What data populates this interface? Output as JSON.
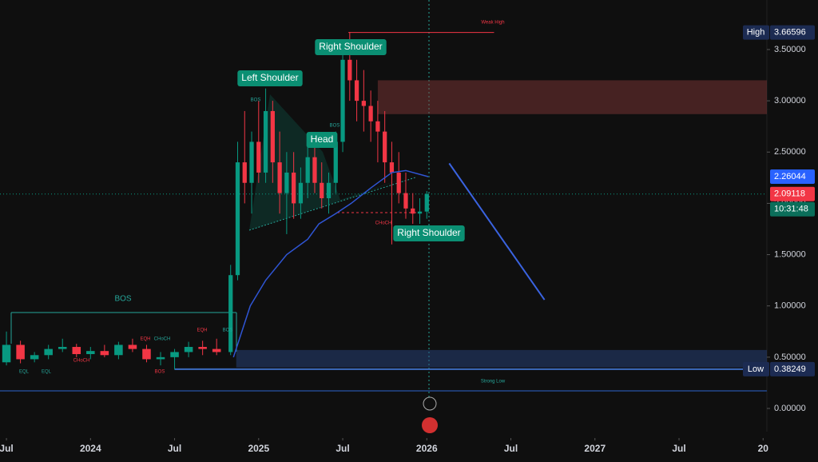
{
  "chart_data": {
    "type": "candlestick",
    "x": [
      0,
      1,
      2,
      3,
      4,
      5,
      6,
      7,
      8,
      9,
      10,
      11,
      12,
      13,
      14,
      15,
      16,
      16.5,
      17,
      17.5,
      18,
      18.5,
      19,
      19.5,
      20,
      20.5,
      21,
      21.5,
      22,
      22.5,
      23,
      23.5,
      24,
      24.5,
      25,
      25.5,
      26,
      26.5,
      27,
      27.5,
      28,
      28.5,
      29,
      29.5,
      30
    ],
    "open": [
      0.45,
      0.62,
      0.48,
      0.52,
      0.58,
      0.6,
      0.53,
      0.56,
      0.52,
      0.62,
      0.58,
      0.48,
      0.5,
      0.55,
      0.6,
      0.58,
      0.55,
      1.3,
      2.4,
      2.2,
      2.6,
      2.3,
      2.9,
      2.4,
      2.1,
      2.3,
      2.0,
      2.2,
      2.45,
      2.2,
      2.05,
      2.2,
      2.6,
      3.4,
      3.2,
      3.0,
      2.95,
      2.8,
      2.7,
      2.4,
      2.3,
      2.1,
      1.95,
      1.9,
      1.92
    ],
    "high": [
      0.75,
      0.66,
      0.55,
      0.62,
      0.68,
      0.63,
      0.6,
      0.62,
      0.65,
      0.68,
      0.62,
      0.55,
      0.58,
      0.65,
      0.66,
      0.68,
      1.4,
      2.6,
      2.9,
      2.7,
      3.0,
      3.12,
      3.0,
      2.7,
      2.5,
      2.5,
      2.35,
      2.55,
      2.55,
      2.4,
      2.3,
      2.7,
      3.6,
      3.67,
      3.4,
      3.3,
      3.1,
      3.0,
      2.9,
      2.6,
      2.5,
      2.3,
      2.1,
      2.05,
      2.12
    ],
    "low": [
      0.42,
      0.44,
      0.45,
      0.48,
      0.55,
      0.5,
      0.48,
      0.5,
      0.48,
      0.55,
      0.45,
      0.42,
      0.38,
      0.5,
      0.52,
      0.52,
      0.52,
      1.25,
      2.0,
      1.9,
      2.2,
      2.2,
      2.2,
      1.9,
      1.7,
      1.85,
      1.85,
      2.05,
      2.1,
      1.95,
      1.9,
      2.1,
      2.5,
      3.0,
      2.8,
      2.7,
      2.6,
      2.4,
      2.2,
      1.6,
      2.0,
      1.85,
      1.8,
      1.8,
      1.85
    ],
    "close": [
      0.62,
      0.48,
      0.52,
      0.58,
      0.6,
      0.53,
      0.56,
      0.52,
      0.62,
      0.58,
      0.48,
      0.5,
      0.55,
      0.6,
      0.58,
      0.55,
      1.3,
      2.4,
      2.2,
      2.6,
      2.3,
      2.9,
      2.4,
      2.1,
      2.3,
      2.0,
      2.2,
      2.45,
      2.2,
      2.05,
      2.2,
      2.6,
      3.4,
      3.2,
      3.0,
      2.95,
      2.8,
      2.7,
      2.4,
      2.3,
      2.1,
      1.95,
      1.9,
      1.92,
      2.09118
    ],
    "up_color": "#089981",
    "down_color": "#f23645",
    "moving_average": {
      "color": "#2f55d4",
      "x": [
        16.2,
        17.4,
        18.5,
        20,
        21.5,
        22.3,
        23.5,
        24.6,
        26,
        27.5,
        28.5,
        30.1
      ],
      "values": [
        0.5,
        1.0,
        1.25,
        1.5,
        1.65,
        1.8,
        1.9,
        2.0,
        2.15,
        2.3,
        2.32,
        2.26044
      ]
    },
    "projection": {
      "color": "#3a63e0",
      "x": [
        31.6,
        38.4
      ],
      "values": [
        2.39,
        1.06
      ]
    },
    "supply_zone": {
      "x": [
        26.5,
        54.27
      ],
      "values": [
        2.87,
        3.2
      ],
      "color": "#8a3a3a"
    },
    "demand_zone": {
      "x": [
        16.4,
        54.27
      ],
      "values": [
        0.4,
        0.57
      ],
      "color": "#2a4a8a"
    },
    "weak_high": {
      "x": [
        24.4,
        34.8
      ],
      "value": 3.66596
    },
    "strong_low": {
      "x": [
        12,
        54.27
      ],
      "value": 0.38249
    },
    "xlim": [
      -0.46,
      54.27
    ],
    "ylim": [
      -0.226,
      3.983
    ],
    "xticks": [
      {
        "value": 0,
        "label": "Jul"
      },
      {
        "value": 6,
        "label": "2024"
      },
      {
        "value": 12,
        "label": "Jul"
      },
      {
        "value": 18,
        "label": "2025"
      },
      {
        "value": 24,
        "label": "Jul"
      },
      {
        "value": 30,
        "label": "2026"
      },
      {
        "value": 36,
        "label": "Jul"
      },
      {
        "value": 42,
        "label": "2027"
      },
      {
        "value": 48,
        "label": "Jul"
      },
      {
        "value": 54,
        "label": "20"
      }
    ],
    "yticks": [
      {
        "value": 0,
        "label": "0.00000"
      },
      {
        "value": 0.5,
        "label": "0.50000"
      },
      {
        "value": 1,
        "label": "1.00000"
      },
      {
        "value": 1.5,
        "label": "1.50000"
      },
      {
        "value": 2,
        "label": "2.00000"
      },
      {
        "value": 2.5,
        "label": "2.50000"
      },
      {
        "value": 3,
        "label": "3.00000"
      },
      {
        "value": 3.5,
        "label": "3.50000"
      }
    ],
    "price_labels": [
      {
        "label": "High",
        "value": 3.66596,
        "color": "#1c2b52"
      },
      {
        "value": 2.26044,
        "color": "#2962ff"
      },
      {
        "value": 2.09118,
        "color": "#f23645"
      },
      {
        "value": 0.38249,
        "label": "Low",
        "color": "#1c2b52"
      }
    ],
    "countdown": "10:31:48",
    "annotations": [
      "Left Shoulder",
      "Head",
      "Right Shoulder",
      "Right Shoulder",
      "BOS",
      "BOS",
      "BOS",
      "BOS",
      "EQH",
      "CHoCH",
      "Weak High",
      "Strong Low",
      "EQH",
      "CHoCH",
      "CHoCH",
      "EQL",
      "EQL",
      "BOS"
    ]
  }
}
